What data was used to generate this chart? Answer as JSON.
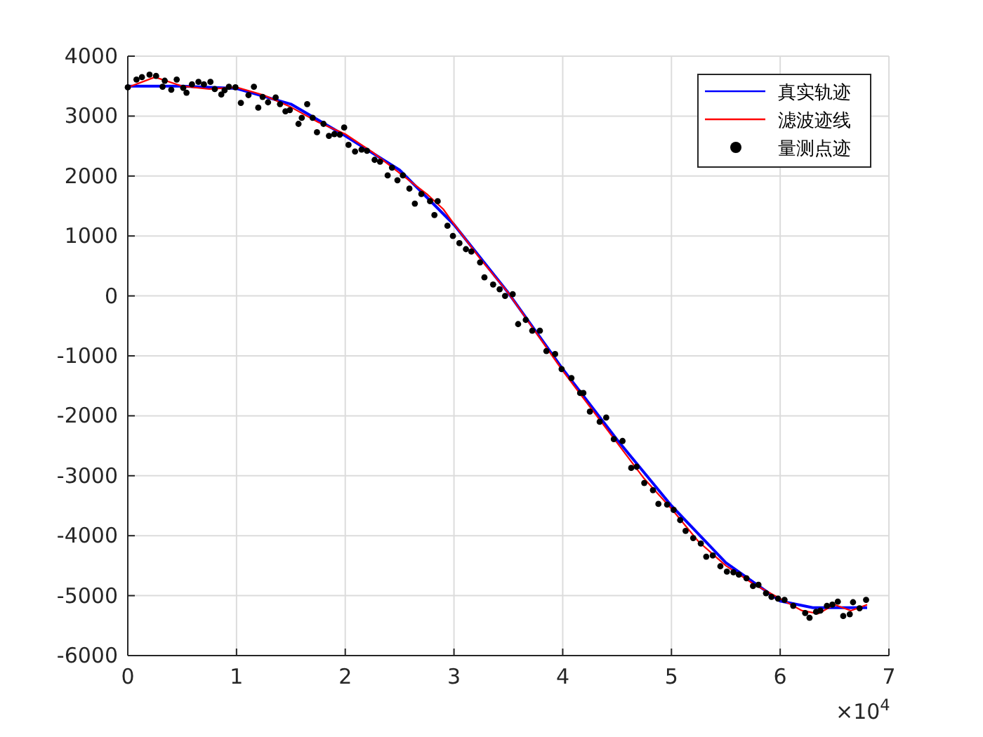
{
  "chart_data": {
    "type": "line",
    "xlim": [
      0,
      7
    ],
    "xticks": [
      0,
      1,
      2,
      3,
      4,
      5,
      6,
      7
    ],
    "ylim": [
      -6000,
      4000
    ],
    "yticks": [
      -6000,
      -5000,
      -4000,
      -3000,
      -2000,
      -1000,
      0,
      1000,
      2000,
      3000,
      4000
    ],
    "grid": true,
    "legend": "top right",
    "annotations": [
      "×10$^{4}$"
    ],
    "series": [
      {
        "name": "真实轨迹",
        "type": "line",
        "color": "#0000ff",
        "x": [
          0,
          0.5,
          1,
          1.5,
          2,
          2.5,
          3,
          3.5,
          4,
          4.5,
          5,
          5.5,
          6,
          6.3,
          6.8
        ],
        "values": [
          3500,
          3500,
          3460,
          3200,
          2670,
          2100,
          1190,
          50,
          -1220,
          -2400,
          -3500,
          -4450,
          -5090,
          -5200,
          -5200
        ]
      },
      {
        "name": "滤波迹线",
        "type": "line",
        "color": "#ff0000",
        "x": [
          0,
          0.25,
          0.5,
          0.75,
          1,
          1.25,
          1.5,
          1.75,
          2,
          2.25,
          2.5,
          2.75,
          2.9,
          3,
          3.25,
          3.5,
          3.75,
          4,
          4.25,
          4.5,
          4.75,
          5,
          5.25,
          5.5,
          5.75,
          6,
          6.2,
          6.35,
          6.5,
          6.65,
          6.8
        ],
        "values": [
          3480,
          3650,
          3500,
          3450,
          3480,
          3350,
          3150,
          2900,
          2700,
          2400,
          2050,
          1700,
          1450,
          1200,
          600,
          50,
          -600,
          -1250,
          -1850,
          -2450,
          -3050,
          -3550,
          -4100,
          -4500,
          -4800,
          -5050,
          -5250,
          -5300,
          -5150,
          -5250,
          -5150
        ]
      },
      {
        "name": "量测点迹",
        "type": "scatter",
        "color": "#000000",
        "marker": "circle",
        "x": [
          0,
          0.08,
          0.13,
          0.2,
          0.26,
          0.32,
          0.34,
          0.4,
          0.45,
          0.51,
          0.54,
          0.59,
          0.65,
          0.7,
          0.76,
          0.8,
          0.86,
          0.89,
          0.93,
          0.99,
          1.04,
          1.11,
          1.16,
          1.2,
          1.24,
          1.29,
          1.36,
          1.4,
          1.45,
          1.49,
          1.57,
          1.6,
          1.65,
          1.7,
          1.74,
          1.8,
          1.85,
          1.9,
          1.95,
          1.99,
          2.03,
          2.09,
          2.15,
          2.2,
          2.27,
          2.32,
          2.39,
          2.43,
          2.48,
          2.53,
          2.59,
          2.64,
          2.7,
          2.78,
          2.82,
          2.85,
          2.94,
          2.99,
          3.05,
          3.11,
          3.16,
          3.24,
          3.28,
          3.36,
          3.42,
          3.47,
          3.54,
          3.59,
          3.66,
          3.72,
          3.79,
          3.85,
          3.93,
          3.99,
          4.08,
          4.16,
          4.19,
          4.25,
          4.34,
          4.4,
          4.47,
          4.55,
          4.63,
          4.68,
          4.75,
          4.83,
          4.88,
          4.96,
          5.02,
          5.08,
          5.13,
          5.2,
          5.27,
          5.32,
          5.38,
          5.45,
          5.51,
          5.57,
          5.62,
          5.69,
          5.75,
          5.8,
          5.87,
          5.92,
          5.98,
          6.04,
          6.12,
          6.23,
          6.27,
          6.33,
          6.37,
          6.43,
          6.48,
          6.53,
          6.58,
          6.64,
          6.67,
          6.73,
          6.79
        ],
        "values": [
          3480,
          3610,
          3650,
          3690,
          3670,
          3490,
          3590,
          3440,
          3610,
          3470,
          3390,
          3530,
          3570,
          3530,
          3570,
          3450,
          3360,
          3430,
          3490,
          3480,
          3220,
          3350,
          3490,
          3140,
          3320,
          3230,
          3310,
          3200,
          3080,
          3100,
          2870,
          2970,
          3200,
          2970,
          2730,
          2870,
          2670,
          2700,
          2690,
          2810,
          2520,
          2410,
          2440,
          2420,
          2270,
          2240,
          2010,
          2140,
          1930,
          2010,
          1790,
          1540,
          1700,
          1580,
          1350,
          1580,
          1170,
          1000,
          880,
          780,
          740,
          560,
          310,
          190,
          110,
          0,
          30,
          -470,
          -400,
          -580,
          -580,
          -920,
          -970,
          -1220,
          -1370,
          -1620,
          -1620,
          -1930,
          -2100,
          -2030,
          -2390,
          -2420,
          -2870,
          -2850,
          -3120,
          -3240,
          -3470,
          -3480,
          -3570,
          -3740,
          -3920,
          -4040,
          -4130,
          -4350,
          -4330,
          -4510,
          -4600,
          -4610,
          -4650,
          -4710,
          -4840,
          -4820,
          -4960,
          -5020,
          -5050,
          -5070,
          -5170,
          -5290,
          -5370,
          -5270,
          -5250,
          -5170,
          -5150,
          -5100,
          -5340,
          -5310,
          -5110,
          -5210,
          -5070
        ]
      }
    ]
  }
}
